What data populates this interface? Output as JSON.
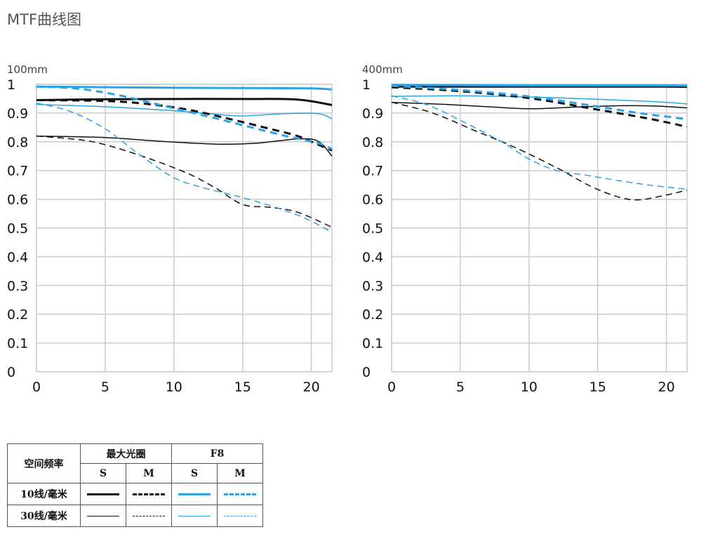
{
  "title": "MTF曲线图",
  "colors": {
    "black": "#111111",
    "blue": "#2aa3e6",
    "grid": "#cccccc"
  },
  "chart_data": [
    {
      "type": "line",
      "focal_label": "100mm",
      "xlim": [
        0,
        21.5
      ],
      "ylim": [
        0,
        1
      ],
      "x_ticks": [
        "0",
        "5",
        "10",
        "15",
        "20"
      ],
      "y_ticks": [
        "0",
        "0.1",
        "0.2",
        "0.3",
        "0.4",
        "0.5",
        "0.6",
        "0.7",
        "0.8",
        "0.9",
        "1"
      ],
      "series": [
        {
          "name": "最大光圈 S 10线/毫米",
          "color": "black",
          "dash": false,
          "width": 3,
          "points": [
            [
              0,
              0.945
            ],
            [
              5,
              0.948
            ],
            [
              10,
              0.949
            ],
            [
              15,
              0.949
            ],
            [
              19,
              0.947
            ],
            [
              21.5,
              0.928
            ]
          ]
        },
        {
          "name": "最大光圈 M 10线/毫米",
          "color": "black",
          "dash": true,
          "width": 3,
          "points": [
            [
              0,
              0.945
            ],
            [
              5,
              0.942
            ],
            [
              8,
              0.932
            ],
            [
              11,
              0.912
            ],
            [
              14,
              0.88
            ],
            [
              17,
              0.845
            ],
            [
              19,
              0.82
            ],
            [
              20.5,
              0.79
            ],
            [
              21.5,
              0.77
            ]
          ]
        },
        {
          "name": "F8 S 10线/毫米",
          "color": "blue",
          "dash": false,
          "width": 3,
          "points": [
            [
              0,
              0.992
            ],
            [
              5,
              0.99
            ],
            [
              10,
              0.988
            ],
            [
              15,
              0.987
            ],
            [
              20,
              0.986
            ],
            [
              21.5,
              0.982
            ]
          ]
        },
        {
          "name": "F8 M 10线/毫米",
          "color": "blue",
          "dash": true,
          "width": 3,
          "points": [
            [
              0,
              0.992
            ],
            [
              3,
              0.985
            ],
            [
              6,
              0.962
            ],
            [
              9,
              0.928
            ],
            [
              12,
              0.894
            ],
            [
              15,
              0.858
            ],
            [
              18,
              0.822
            ],
            [
              20.5,
              0.795
            ],
            [
              21.5,
              0.775
            ]
          ]
        },
        {
          "name": "最大光圈 S 30线/毫米",
          "color": "black",
          "dash": false,
          "width": 1.5,
          "points": [
            [
              0,
              0.82
            ],
            [
              5,
              0.815
            ],
            [
              9,
              0.802
            ],
            [
              13,
              0.792
            ],
            [
              16,
              0.795
            ],
            [
              19,
              0.81
            ],
            [
              20.5,
              0.802
            ],
            [
              21.5,
              0.75
            ]
          ]
        },
        {
          "name": "最大光圈 M 30线/毫米",
          "color": "black",
          "dash": true,
          "width": 1.5,
          "points": [
            [
              0,
              0.82
            ],
            [
              3,
              0.808
            ],
            [
              5,
              0.79
            ],
            [
              8,
              0.745
            ],
            [
              11,
              0.69
            ],
            [
              13,
              0.64
            ],
            [
              15,
              0.582
            ],
            [
              17,
              0.572
            ],
            [
              19,
              0.555
            ],
            [
              21.5,
              0.503
            ]
          ]
        },
        {
          "name": "F8 S 30线/毫米",
          "color": "blue",
          "dash": false,
          "width": 1.5,
          "points": [
            [
              0,
              0.93
            ],
            [
              5,
              0.922
            ],
            [
              10,
              0.908
            ],
            [
              13,
              0.896
            ],
            [
              15,
              0.89
            ],
            [
              18,
              0.898
            ],
            [
              20.5,
              0.898
            ],
            [
              21.5,
              0.88
            ]
          ]
        },
        {
          "name": "F8 M 30线/毫米",
          "color": "blue",
          "dash": true,
          "width": 1.5,
          "points": [
            [
              0,
              0.935
            ],
            [
              2.5,
              0.905
            ],
            [
              5,
              0.845
            ],
            [
              7.5,
              0.755
            ],
            [
              10,
              0.675
            ],
            [
              12,
              0.642
            ],
            [
              14.5,
              0.612
            ],
            [
              17,
              0.578
            ],
            [
              19.5,
              0.535
            ],
            [
              21.5,
              0.485
            ]
          ]
        }
      ]
    },
    {
      "type": "line",
      "focal_label": "400mm",
      "xlim": [
        0,
        21.5
      ],
      "ylim": [
        0,
        1
      ],
      "x_ticks": [
        "0",
        "5",
        "10",
        "15",
        "20"
      ],
      "y_ticks": [
        "0",
        "0.1",
        "0.2",
        "0.3",
        "0.4",
        "0.5",
        "0.6",
        "0.7",
        "0.8",
        "0.9",
        "1"
      ],
      "series": [
        {
          "name": "最大光圈 S 10线/毫米",
          "color": "black",
          "dash": false,
          "width": 3,
          "points": [
            [
              0,
              0.992
            ],
            [
              5,
              0.992
            ],
            [
              10,
              0.992
            ],
            [
              15,
              0.992
            ],
            [
              20,
              0.992
            ],
            [
              21.5,
              0.991
            ]
          ]
        },
        {
          "name": "最大光圈 M 10线/毫米",
          "color": "black",
          "dash": true,
          "width": 3,
          "points": [
            [
              0,
              0.99
            ],
            [
              5,
              0.976
            ],
            [
              10,
              0.952
            ],
            [
              15,
              0.912
            ],
            [
              19,
              0.878
            ],
            [
              21.5,
              0.852
            ]
          ]
        },
        {
          "name": "F8 S 10线/毫米",
          "color": "blue",
          "dash": false,
          "width": 3,
          "points": [
            [
              0,
              0.998
            ],
            [
              5,
              0.997
            ],
            [
              10,
              0.996
            ],
            [
              15,
              0.996
            ],
            [
              20,
              0.996
            ],
            [
              21.5,
              0.995
            ]
          ]
        },
        {
          "name": "F8 M 10线/毫米",
          "color": "blue",
          "dash": true,
          "width": 3,
          "points": [
            [
              0,
              0.995
            ],
            [
              5,
              0.98
            ],
            [
              10,
              0.958
            ],
            [
              14,
              0.93
            ],
            [
              18,
              0.9
            ],
            [
              20.5,
              0.885
            ],
            [
              21.5,
              0.878
            ]
          ]
        },
        {
          "name": "最大光圈 S 30线/毫米",
          "color": "black",
          "dash": false,
          "width": 1.5,
          "points": [
            [
              0,
              0.937
            ],
            [
              4,
              0.93
            ],
            [
              7,
              0.922
            ],
            [
              10,
              0.915
            ],
            [
              13,
              0.92
            ],
            [
              16,
              0.925
            ],
            [
              19,
              0.925
            ],
            [
              21.5,
              0.918
            ]
          ]
        },
        {
          "name": "最大光圈 M 30线/毫米",
          "color": "black",
          "dash": true,
          "width": 1.5,
          "points": [
            [
              0,
              0.938
            ],
            [
              3,
              0.9
            ],
            [
              6,
              0.84
            ],
            [
              9,
              0.78
            ],
            [
              12,
              0.71
            ],
            [
              14.5,
              0.645
            ],
            [
              16.5,
              0.608
            ],
            [
              18,
              0.598
            ],
            [
              20,
              0.615
            ],
            [
              21.5,
              0.632
            ]
          ]
        },
        {
          "name": "F8 S 30线/毫米",
          "color": "blue",
          "dash": false,
          "width": 1.5,
          "points": [
            [
              0,
              0.958
            ],
            [
              5,
              0.96
            ],
            [
              10,
              0.956
            ],
            [
              15,
              0.948
            ],
            [
              19,
              0.94
            ],
            [
              21.5,
              0.932
            ]
          ]
        },
        {
          "name": "F8 M 30线/毫米",
          "color": "blue",
          "dash": true,
          "width": 1.5,
          "points": [
            [
              0,
              0.96
            ],
            [
              2.5,
              0.93
            ],
            [
              5,
              0.875
            ],
            [
              8,
              0.8
            ],
            [
              10,
              0.74
            ],
            [
              12,
              0.7
            ],
            [
              14,
              0.685
            ],
            [
              16.5,
              0.665
            ],
            [
              19,
              0.648
            ],
            [
              21.5,
              0.635
            ]
          ]
        }
      ]
    }
  ],
  "legend": {
    "row_header": "空间频率",
    "group_max_aperture": "最大光圈",
    "group_f8": "F8",
    "col_s_1": "S",
    "col_m_1": "M",
    "col_s_2": "S",
    "col_m_2": "M",
    "row_10": "10线/毫米",
    "row_30": "30线/毫米"
  }
}
